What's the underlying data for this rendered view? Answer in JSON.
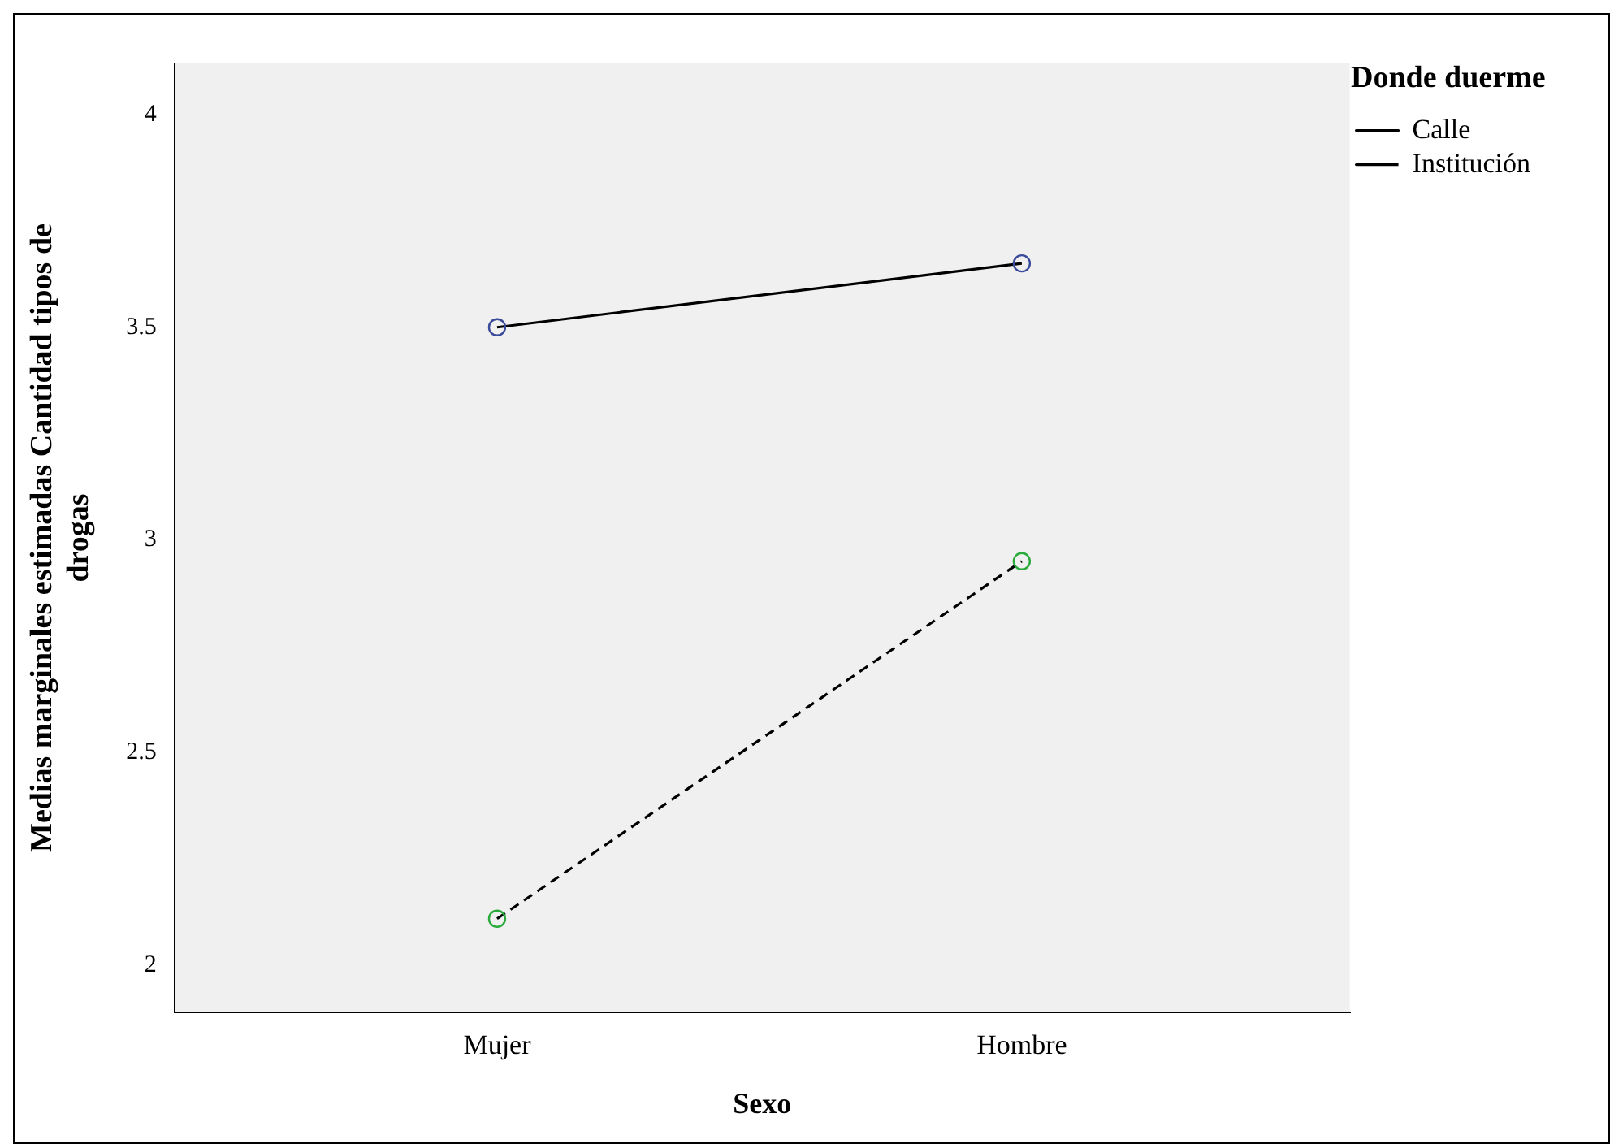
{
  "chart_data": {
    "type": "line",
    "xlabel": "Sexo",
    "ylabel": "Medias marginales estimadas Cantidad tipos de drogas",
    "legend_title": "Donde duerme",
    "categories": [
      "Mujer",
      "Hombre"
    ],
    "series": [
      {
        "name": "Calle",
        "color": "#000000",
        "colors": [
          "#3a4a9a",
          "#3a4a9a"
        ],
        "line_style": "solid",
        "values": [
          3.5,
          3.65
        ]
      },
      {
        "name": "Institución",
        "color": "#000000",
        "colors": [
          "#2aaa3a",
          "#2aaa3a"
        ],
        "line_style": "dashed",
        "values": [
          2.11,
          2.95
        ]
      }
    ],
    "ylim": [
      1.89,
      4.12
    ],
    "yticks": [
      2,
      2.5,
      3,
      3.5,
      4
    ],
    "grid": false,
    "legend": "top right",
    "marker": "circle"
  }
}
